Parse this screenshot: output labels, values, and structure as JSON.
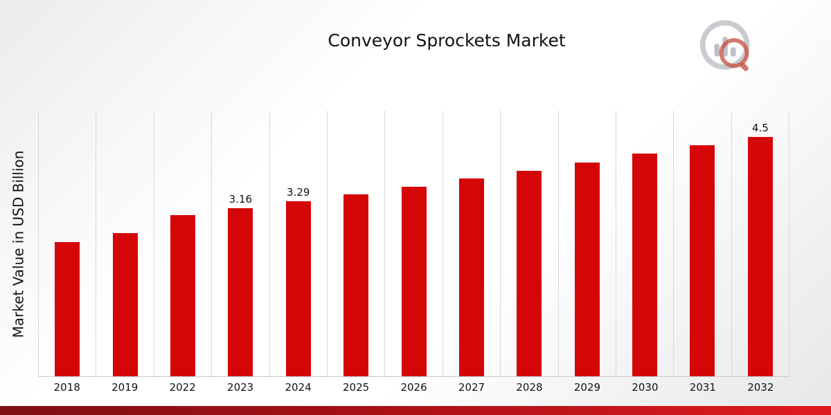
{
  "title": "Conveyor Sprockets Market",
  "ylabel": "Market Value in USD Billion",
  "colors": {
    "bar": "#d40608",
    "footer_strip_left": "#7d1013",
    "footer_strip_right": "#e01b20",
    "gridline": "#d9d9da",
    "background_edge": "#ececee"
  },
  "logo": {
    "name": "brand-logo-icon"
  },
  "chart_data": {
    "type": "bar",
    "title": "Conveyor Sprockets Market",
    "xlabel": "",
    "ylabel": "Market Value in USD Billion",
    "categories": [
      "2018",
      "2019",
      "2022",
      "2023",
      "2024",
      "2025",
      "2026",
      "2027",
      "2028",
      "2029",
      "2030",
      "2031",
      "2032"
    ],
    "values": [
      2.52,
      2.7,
      3.03,
      3.16,
      3.29,
      3.43,
      3.57,
      3.72,
      3.87,
      4.03,
      4.19,
      4.35,
      4.5
    ],
    "data_labels": [
      "",
      "",
      "",
      "3.16",
      "3.29",
      "",
      "",
      "",
      "",
      "",
      "",
      "",
      "4.5"
    ],
    "ylim": [
      0,
      5
    ],
    "grid": "vertical-only",
    "legend": "none",
    "bar_color": "#d40608"
  }
}
